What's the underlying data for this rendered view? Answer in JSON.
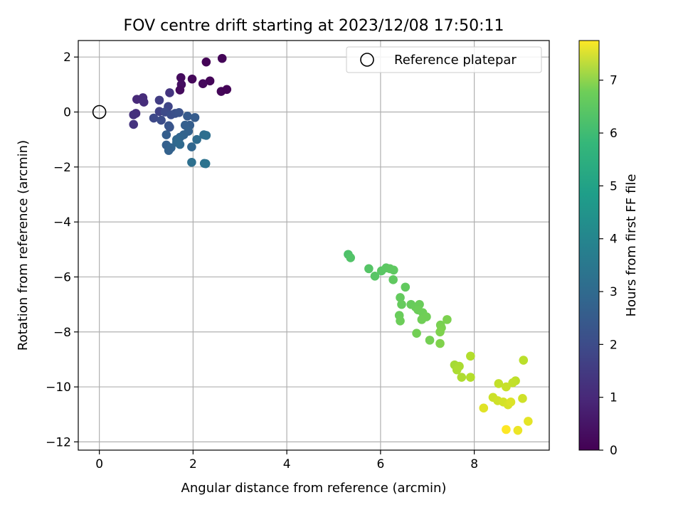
{
  "chart_data": {
    "type": "scatter",
    "title": "FOV centre drift starting at 2023/12/08 17:50:11",
    "xlabel": "Angular distance from reference (arcmin)",
    "ylabel": "Rotation from reference (arcmin)",
    "xlim": [
      -0.45,
      9.6
    ],
    "ylim": [
      -12.3,
      2.6
    ],
    "xticks": [
      0,
      2,
      4,
      6,
      8
    ],
    "xtick_labels": [
      "0",
      "2",
      "4",
      "6",
      "8"
    ],
    "yticks": [
      2,
      0,
      -2,
      -4,
      -6,
      -8,
      -10,
      -12
    ],
    "ytick_labels": [
      "2",
      "0",
      "−2",
      "−4",
      "−6",
      "−8",
      "−10",
      "−12"
    ],
    "grid": true,
    "legend": {
      "placement": "top-right",
      "entries": [
        "Reference platepar"
      ]
    },
    "reference_point": {
      "label": "Reference platepar",
      "x": 0,
      "y": 0,
      "marker": "open-circle"
    },
    "colorbar": {
      "label": "Hours from first FF file",
      "colormap": "viridis",
      "range": [
        0,
        7.75
      ],
      "ticks": [
        0,
        1,
        2,
        3,
        4,
        5,
        6,
        7
      ],
      "tick_labels": [
        "0",
        "1",
        "2",
        "3",
        "4",
        "5",
        "6",
        "7"
      ]
    },
    "series": [
      {
        "points": [
          {
            "x": 2.28,
            "y": 1.82,
            "c": 0.05
          },
          {
            "x": 2.62,
            "y": 1.95,
            "c": 0.08
          },
          {
            "x": 1.98,
            "y": 1.2,
            "c": 0.15
          },
          {
            "x": 2.36,
            "y": 1.13,
            "c": 0.12
          },
          {
            "x": 1.74,
            "y": 1.25,
            "c": 0.25
          },
          {
            "x": 2.21,
            "y": 1.03,
            "c": 0.18
          },
          {
            "x": 1.75,
            "y": 1.0,
            "c": 0.3
          },
          {
            "x": 1.72,
            "y": 0.8,
            "c": 0.22
          },
          {
            "x": 2.6,
            "y": 0.75,
            "c": 0.1
          },
          {
            "x": 2.72,
            "y": 0.82,
            "c": 0.06
          },
          {
            "x": 0.93,
            "y": 0.52,
            "c": 0.95
          },
          {
            "x": 0.8,
            "y": 0.46,
            "c": 0.9
          },
          {
            "x": 0.95,
            "y": 0.36,
            "c": 1.0
          },
          {
            "x": 1.28,
            "y": 0.43,
            "c": 1.4
          },
          {
            "x": 1.5,
            "y": 0.7,
            "c": 1.2
          },
          {
            "x": 0.78,
            "y": -0.05,
            "c": 1.05
          },
          {
            "x": 0.73,
            "y": -0.1,
            "c": 1.1
          },
          {
            "x": 0.73,
            "y": -0.45,
            "c": 1.15
          },
          {
            "x": 1.28,
            "y": 0.02,
            "c": 1.5
          },
          {
            "x": 1.47,
            "y": 0.2,
            "c": 1.6
          },
          {
            "x": 1.16,
            "y": -0.22,
            "c": 1.7
          },
          {
            "x": 1.32,
            "y": -0.3,
            "c": 1.8
          },
          {
            "x": 1.4,
            "y": 0.0,
            "c": 1.75
          },
          {
            "x": 1.53,
            "y": -0.1,
            "c": 1.85
          },
          {
            "x": 1.62,
            "y": -0.05,
            "c": 1.9
          },
          {
            "x": 1.7,
            "y": -0.02,
            "c": 1.95
          },
          {
            "x": 1.48,
            "y": -0.5,
            "c": 2.0
          },
          {
            "x": 1.5,
            "y": -0.55,
            "c": 2.05
          },
          {
            "x": 1.88,
            "y": -0.15,
            "c": 2.2
          },
          {
            "x": 2.04,
            "y": -0.2,
            "c": 2.25
          },
          {
            "x": 1.93,
            "y": -0.48,
            "c": 2.3
          },
          {
            "x": 1.83,
            "y": -0.48,
            "c": 2.35
          },
          {
            "x": 1.9,
            "y": -0.7,
            "c": 2.4
          },
          {
            "x": 1.43,
            "y": -0.83,
            "c": 2.3
          },
          {
            "x": 1.8,
            "y": -0.83,
            "c": 2.45
          },
          {
            "x": 1.72,
            "y": -0.92,
            "c": 2.5
          },
          {
            "x": 1.65,
            "y": -1.0,
            "c": 2.55
          },
          {
            "x": 1.43,
            "y": -1.2,
            "c": 2.35
          },
          {
            "x": 1.65,
            "y": -1.1,
            "c": 2.6
          },
          {
            "x": 1.72,
            "y": -1.18,
            "c": 2.65
          },
          {
            "x": 1.53,
            "y": -1.3,
            "c": 2.5
          },
          {
            "x": 1.48,
            "y": -1.4,
            "c": 2.4
          },
          {
            "x": 1.97,
            "y": -1.27,
            "c": 2.55
          },
          {
            "x": 2.08,
            "y": -1.0,
            "c": 2.7
          },
          {
            "x": 2.23,
            "y": -0.83,
            "c": 2.75
          },
          {
            "x": 2.28,
            "y": -0.85,
            "c": 2.8
          },
          {
            "x": 1.97,
            "y": -1.83,
            "c": 2.85
          },
          {
            "x": 2.24,
            "y": -1.87,
            "c": 2.9
          },
          {
            "x": 2.27,
            "y": -1.88,
            "c": 2.95
          },
          {
            "x": 5.31,
            "y": -5.18,
            "c": 5.55
          },
          {
            "x": 5.36,
            "y": -5.3,
            "c": 5.6
          },
          {
            "x": 5.75,
            "y": -5.7,
            "c": 5.65
          },
          {
            "x": 5.88,
            "y": -5.97,
            "c": 5.7
          },
          {
            "x": 6.02,
            "y": -5.78,
            "c": 5.72
          },
          {
            "x": 6.12,
            "y": -5.67,
            "c": 5.75
          },
          {
            "x": 6.2,
            "y": -5.7,
            "c": 5.78
          },
          {
            "x": 6.28,
            "y": -5.75,
            "c": 5.8
          },
          {
            "x": 6.27,
            "y": -6.1,
            "c": 5.82
          },
          {
            "x": 6.53,
            "y": -6.37,
            "c": 5.85
          },
          {
            "x": 6.42,
            "y": -6.75,
            "c": 5.88
          },
          {
            "x": 6.45,
            "y": -7.0,
            "c": 5.9
          },
          {
            "x": 6.65,
            "y": -7.0,
            "c": 5.92
          },
          {
            "x": 6.75,
            "y": -7.1,
            "c": 5.95
          },
          {
            "x": 6.83,
            "y": -7.0,
            "c": 5.97
          },
          {
            "x": 6.8,
            "y": -7.2,
            "c": 6.0
          },
          {
            "x": 6.9,
            "y": -7.3,
            "c": 6.02
          },
          {
            "x": 6.98,
            "y": -7.45,
            "c": 6.05
          },
          {
            "x": 6.4,
            "y": -7.4,
            "c": 5.95
          },
          {
            "x": 6.42,
            "y": -7.6,
            "c": 6.0
          },
          {
            "x": 6.88,
            "y": -7.55,
            "c": 6.05
          },
          {
            "x": 6.77,
            "y": -8.05,
            "c": 6.08
          },
          {
            "x": 7.05,
            "y": -8.3,
            "c": 6.1
          },
          {
            "x": 7.28,
            "y": -7.75,
            "c": 6.15
          },
          {
            "x": 7.3,
            "y": -7.85,
            "c": 6.18
          },
          {
            "x": 7.42,
            "y": -7.55,
            "c": 6.2
          },
          {
            "x": 7.27,
            "y": -8.0,
            "c": 6.22
          },
          {
            "x": 7.27,
            "y": -8.42,
            "c": 6.25
          },
          {
            "x": 7.58,
            "y": -9.2,
            "c": 6.7
          },
          {
            "x": 7.68,
            "y": -9.25,
            "c": 6.75
          },
          {
            "x": 7.63,
            "y": -9.38,
            "c": 6.78
          },
          {
            "x": 7.73,
            "y": -9.65,
            "c": 6.8
          },
          {
            "x": 7.92,
            "y": -8.88,
            "c": 6.85
          },
          {
            "x": 7.92,
            "y": -9.65,
            "c": 6.88
          },
          {
            "x": 9.05,
            "y": -9.03,
            "c": 6.95
          },
          {
            "x": 8.88,
            "y": -9.78,
            "c": 7.0
          },
          {
            "x": 8.82,
            "y": -9.85,
            "c": 7.05
          },
          {
            "x": 8.52,
            "y": -9.88,
            "c": 7.05
          },
          {
            "x": 8.68,
            "y": -10.0,
            "c": 7.1
          },
          {
            "x": 8.4,
            "y": -10.38,
            "c": 7.15
          },
          {
            "x": 8.5,
            "y": -10.5,
            "c": 7.2
          },
          {
            "x": 8.62,
            "y": -10.55,
            "c": 7.25
          },
          {
            "x": 8.72,
            "y": -10.65,
            "c": 7.3
          },
          {
            "x": 8.78,
            "y": -10.55,
            "c": 7.35
          },
          {
            "x": 9.03,
            "y": -10.42,
            "c": 7.2
          },
          {
            "x": 8.2,
            "y": -10.77,
            "c": 7.4
          },
          {
            "x": 9.15,
            "y": -11.25,
            "c": 7.45
          },
          {
            "x": 8.93,
            "y": -11.58,
            "c": 7.55
          },
          {
            "x": 8.68,
            "y": -11.55,
            "c": 7.75
          }
        ]
      }
    ]
  }
}
